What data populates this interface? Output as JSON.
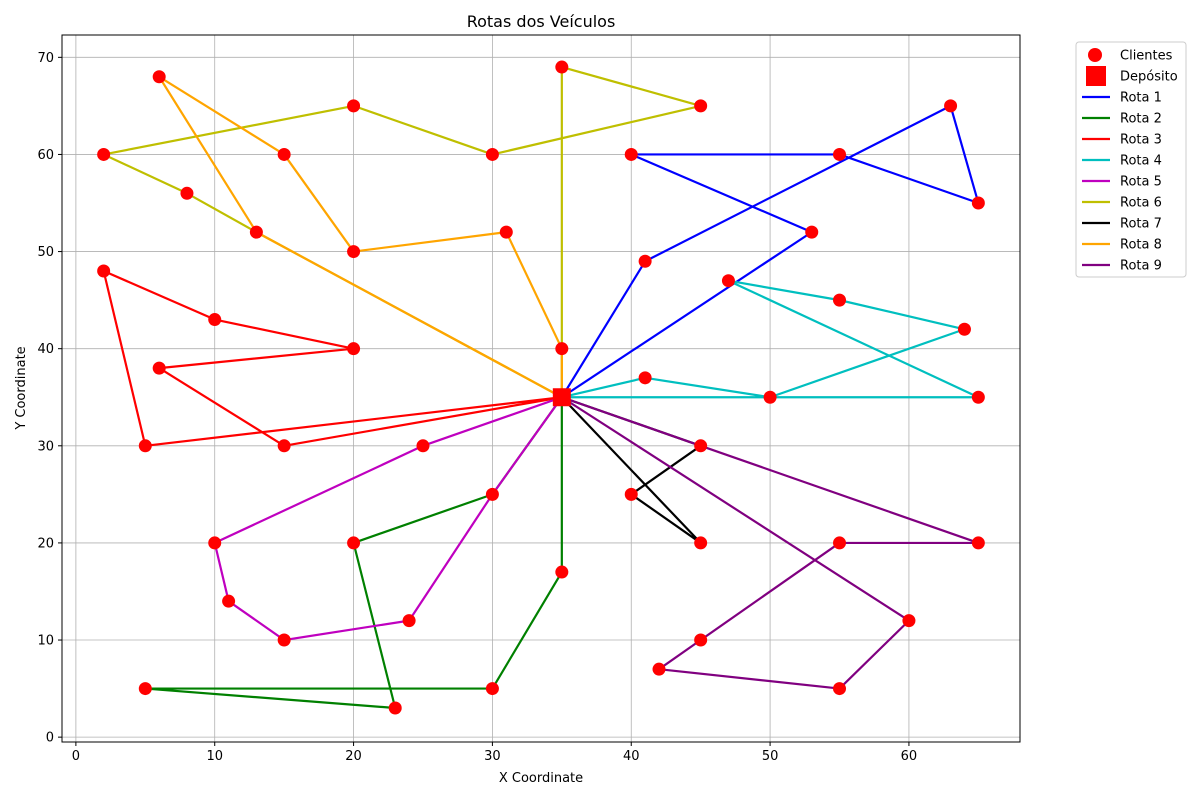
{
  "chart_data": {
    "type": "scatter",
    "title": "Rotas dos Veículos",
    "xlabel": "X Coordinate",
    "ylabel": "Y Coordinate",
    "xlim": [
      -1,
      68
    ],
    "ylim": [
      -0.5,
      72.3
    ],
    "xticks": [
      0,
      10,
      20,
      30,
      40,
      50,
      60
    ],
    "yticks": [
      0,
      10,
      20,
      30,
      40,
      50,
      60,
      70
    ],
    "grid": true,
    "legend_position": "outside top-right",
    "legend": {
      "customers_label": "Clientes",
      "depot_label": "Depósito"
    },
    "depot": {
      "x": 35,
      "y": 35,
      "color": "#ff0000"
    },
    "customer_color": "#ff0000",
    "customers": [
      [
        63,
        65
      ],
      [
        65,
        55
      ],
      [
        55,
        60
      ],
      [
        40,
        60
      ],
      [
        53,
        52
      ],
      [
        41,
        49
      ],
      [
        47,
        47
      ],
      [
        55,
        45
      ],
      [
        64,
        42
      ],
      [
        65,
        35
      ],
      [
        50,
        35
      ],
      [
        41,
        37
      ],
      [
        45,
        30
      ],
      [
        45,
        20
      ],
      [
        40,
        25
      ],
      [
        65,
        20
      ],
      [
        55,
        20
      ],
      [
        60,
        12
      ],
      [
        55,
        5
      ],
      [
        42,
        7
      ],
      [
        45,
        10
      ],
      [
        35,
        17
      ],
      [
        30,
        5
      ],
      [
        23,
        3
      ],
      [
        5,
        5
      ],
      [
        20,
        20
      ],
      [
        30,
        25
      ],
      [
        10,
        20
      ],
      [
        11,
        14
      ],
      [
        15,
        10
      ],
      [
        24,
        12
      ],
      [
        25,
        30
      ],
      [
        30,
        60
      ],
      [
        45,
        65
      ],
      [
        35,
        69
      ],
      [
        20,
        65
      ],
      [
        2,
        60
      ],
      [
        8,
        56
      ],
      [
        13,
        52
      ],
      [
        6,
        68
      ],
      [
        15,
        60
      ],
      [
        20,
        50
      ],
      [
        31,
        52
      ],
      [
        35,
        40
      ],
      [
        2,
        48
      ],
      [
        10,
        43
      ],
      [
        20,
        40
      ],
      [
        6,
        38
      ],
      [
        5,
        30
      ],
      [
        15,
        30
      ]
    ],
    "series": [
      {
        "name": "Rota 1",
        "color": "#0000ff",
        "x": [
          35,
          53,
          40,
          55,
          65,
          63,
          41,
          35
        ],
        "y": [
          35,
          52,
          60,
          60,
          55,
          65,
          49,
          35
        ]
      },
      {
        "name": "Rota 2",
        "color": "#008000",
        "x": [
          35,
          35,
          30,
          5,
          23,
          20,
          30,
          35
        ],
        "y": [
          35,
          17,
          5,
          5,
          3,
          20,
          25,
          35
        ]
      },
      {
        "name": "Rota 3",
        "color": "#ff0000",
        "x": [
          35,
          15,
          6,
          20,
          10,
          2,
          5,
          35
        ],
        "y": [
          35,
          30,
          38,
          40,
          43,
          48,
          30,
          35
        ]
      },
      {
        "name": "Rota 4",
        "color": "#00bfbf",
        "x": [
          35,
          41,
          50,
          64,
          55,
          47,
          65,
          35
        ],
        "y": [
          35,
          37,
          35,
          42,
          45,
          47,
          35,
          35
        ]
      },
      {
        "name": "Rota 5",
        "color": "#bf00bf",
        "x": [
          35,
          30,
          24,
          15,
          11,
          10,
          25,
          35
        ],
        "y": [
          35,
          25,
          12,
          10,
          14,
          20,
          30,
          35
        ]
      },
      {
        "name": "Rota 6",
        "color": "#bfbf00",
        "x": [
          35,
          35,
          45,
          30,
          20,
          2,
          8,
          13,
          35
        ],
        "y": [
          35,
          69,
          65,
          60,
          65,
          60,
          56,
          52,
          35
        ]
      },
      {
        "name": "Rota 7",
        "color": "#000000",
        "x": [
          35,
          45,
          40,
          45,
          35
        ],
        "y": [
          35,
          30,
          25,
          20,
          35
        ]
      },
      {
        "name": "Rota 8",
        "color": "#ffa500",
        "x": [
          35,
          35,
          31,
          20,
          15,
          6,
          13,
          35
        ],
        "y": [
          35,
          40,
          52,
          50,
          60,
          68,
          52,
          35
        ]
      },
      {
        "name": "Rota 9",
        "color": "#800080",
        "x": [
          35,
          45,
          65,
          55,
          45,
          42,
          55,
          60,
          35
        ],
        "y": [
          35,
          30,
          20,
          20,
          10,
          7,
          5,
          12,
          35
        ]
      }
    ]
  }
}
